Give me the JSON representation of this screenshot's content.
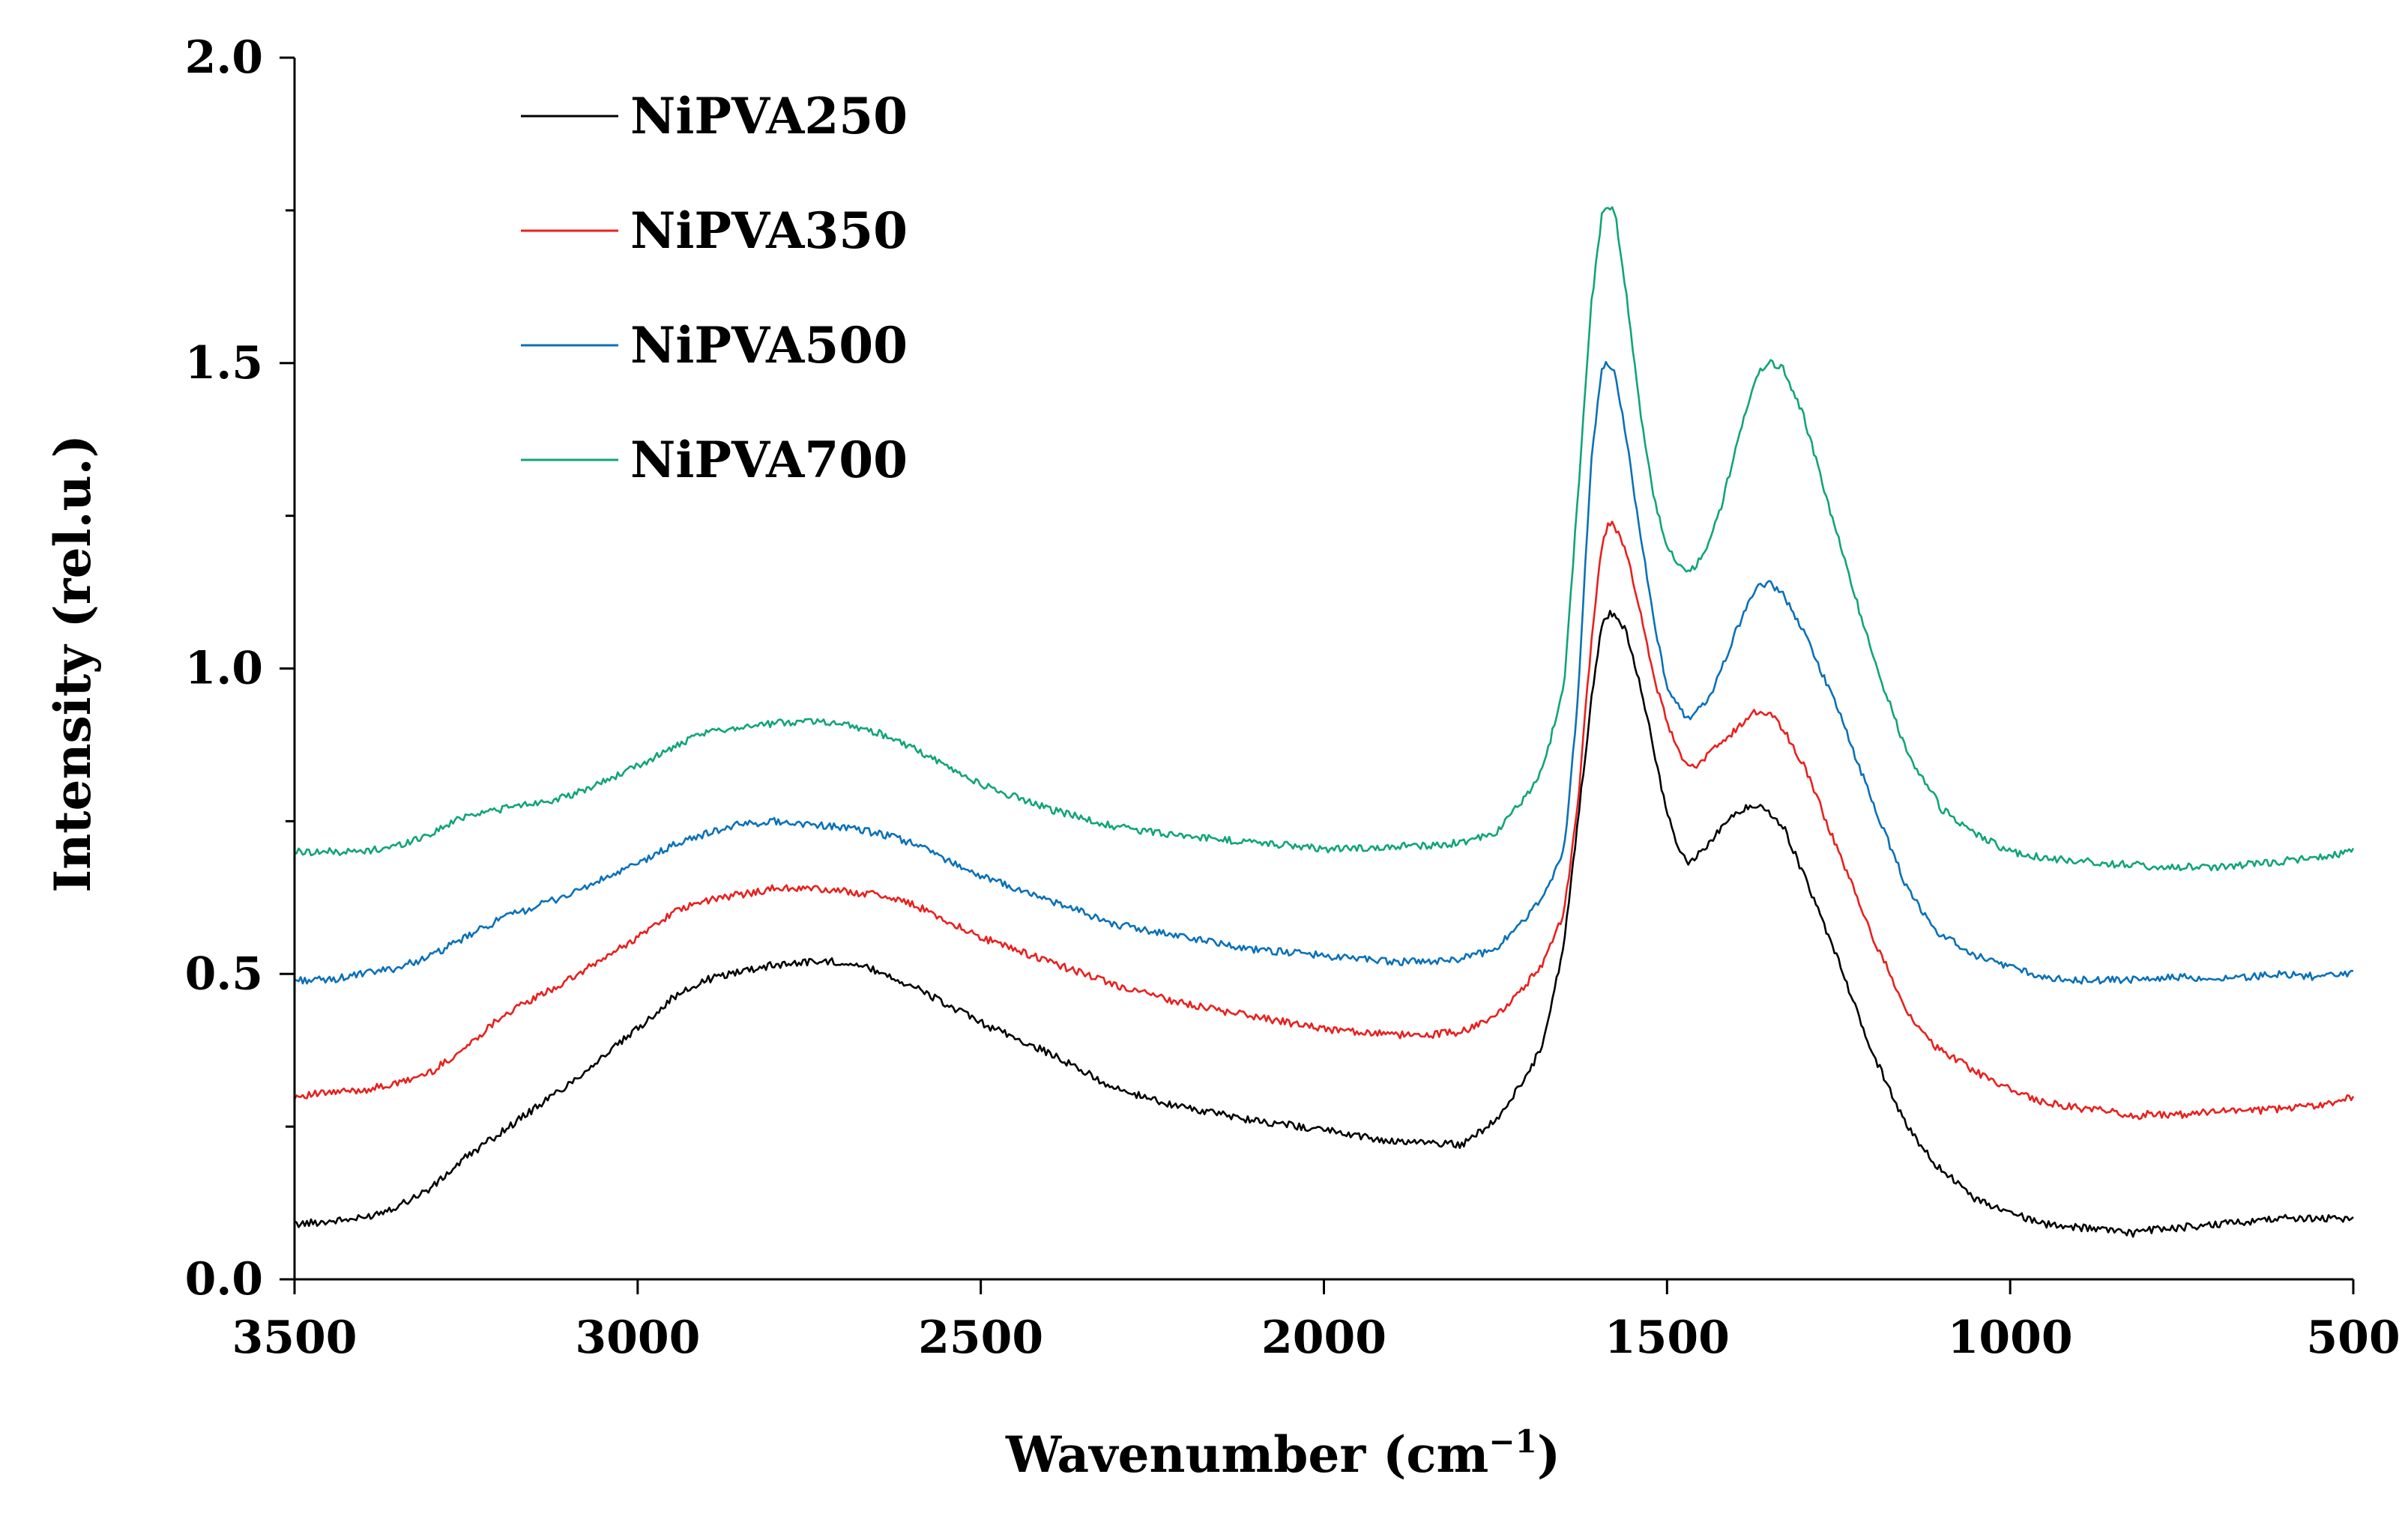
{
  "chart_data": {
    "type": "line",
    "title": "",
    "xlabel": "Wavenumber (cm",
    "xlabel_sup": "−1",
    "xlabel_close": ")",
    "ylabel": "Intensity (rel.u.)",
    "xlim": [
      3500,
      500
    ],
    "ylim": [
      0,
      2.0
    ],
    "xticks": [
      3500,
      3000,
      2500,
      2000,
      1500,
      1000,
      500
    ],
    "xtick_labels": [
      "3500",
      "3000",
      "2500",
      "2000",
      "1500",
      "1000",
      "500"
    ],
    "yticks": [
      0,
      0.5,
      1.0,
      1.5,
      2.0
    ],
    "ytick_labels": [
      "0.0",
      "0.5",
      "1.0",
      "1.5",
      "2.0"
    ],
    "grid": false,
    "legend_position": "top-left",
    "series": [
      {
        "name": "NiPVA250",
        "color": "#000000",
        "x": [
          3500,
          3450,
          3400,
          3350,
          3300,
          3250,
          3200,
          3100,
          3000,
          2950,
          2900,
          2850,
          2800,
          2750,
          2700,
          2650,
          2600,
          2500,
          2400,
          2300,
          2200,
          2100,
          2000,
          1950,
          1900,
          1850,
          1800,
          1750,
          1700,
          1680,
          1650,
          1630,
          1610,
          1595,
          1585,
          1575,
          1560,
          1540,
          1520,
          1500,
          1480,
          1470,
          1460,
          1440,
          1420,
          1400,
          1380,
          1370,
          1350,
          1330,
          1300,
          1250,
          1200,
          1150,
          1110,
          1100,
          1050,
          1000,
          950,
          900,
          850,
          820,
          800,
          750,
          700,
          650,
          600,
          550,
          500
        ],
        "y": [
          0.09,
          0.095,
          0.1,
          0.12,
          0.15,
          0.2,
          0.24,
          0.32,
          0.41,
          0.46,
          0.49,
          0.505,
          0.515,
          0.52,
          0.52,
          0.505,
          0.48,
          0.42,
          0.37,
          0.31,
          0.28,
          0.26,
          0.245,
          0.235,
          0.225,
          0.225,
          0.22,
          0.26,
          0.34,
          0.39,
          0.55,
          0.75,
          0.95,
          1.07,
          1.09,
          1.09,
          1.06,
          0.98,
          0.87,
          0.76,
          0.7,
          0.68,
          0.69,
          0.71,
          0.74,
          0.76,
          0.775,
          0.775,
          0.765,
          0.74,
          0.66,
          0.52,
          0.37,
          0.25,
          0.19,
          0.18,
          0.13,
          0.11,
          0.09,
          0.085,
          0.08,
          0.075,
          0.08,
          0.085,
          0.09,
          0.095,
          0.1,
          0.1,
          0.1
        ]
      },
      {
        "name": "NiPVA350",
        "color": "#e8201e",
        "x": [
          3500,
          3450,
          3400,
          3350,
          3300,
          3250,
          3200,
          3100,
          3000,
          2950,
          2900,
          2850,
          2800,
          2750,
          2700,
          2650,
          2600,
          2500,
          2400,
          2300,
          2200,
          2100,
          2000,
          1950,
          1900,
          1850,
          1800,
          1750,
          1700,
          1680,
          1650,
          1630,
          1610,
          1595,
          1585,
          1575,
          1560,
          1540,
          1520,
          1500,
          1480,
          1470,
          1460,
          1440,
          1420,
          1400,
          1380,
          1370,
          1350,
          1330,
          1300,
          1250,
          1200,
          1150,
          1110,
          1100,
          1050,
          1000,
          950,
          900,
          850,
          820,
          800,
          750,
          700,
          650,
          600,
          550,
          500
        ],
        "y": [
          0.3,
          0.305,
          0.31,
          0.32,
          0.34,
          0.38,
          0.43,
          0.49,
          0.56,
          0.6,
          0.62,
          0.63,
          0.64,
          0.64,
          0.635,
          0.63,
          0.615,
          0.56,
          0.52,
          0.48,
          0.45,
          0.43,
          0.41,
          0.405,
          0.4,
          0.4,
          0.405,
          0.43,
          0.49,
          0.52,
          0.6,
          0.78,
          1.05,
          1.2,
          1.24,
          1.23,
          1.19,
          1.1,
          0.99,
          0.91,
          0.86,
          0.84,
          0.84,
          0.86,
          0.88,
          0.9,
          0.92,
          0.93,
          0.925,
          0.9,
          0.84,
          0.7,
          0.56,
          0.44,
          0.38,
          0.375,
          0.34,
          0.31,
          0.29,
          0.28,
          0.275,
          0.265,
          0.27,
          0.27,
          0.275,
          0.275,
          0.28,
          0.285,
          0.3
        ]
      },
      {
        "name": "NiPVA500",
        "color": "#0a71b8",
        "x": [
          3500,
          3450,
          3400,
          3350,
          3300,
          3250,
          3200,
          3100,
          3000,
          2950,
          2900,
          2850,
          2800,
          2750,
          2700,
          2650,
          2600,
          2500,
          2400,
          2300,
          2200,
          2100,
          2000,
          1950,
          1900,
          1850,
          1800,
          1750,
          1700,
          1680,
          1650,
          1630,
          1610,
          1595,
          1585,
          1575,
          1560,
          1540,
          1520,
          1500,
          1480,
          1470,
          1460,
          1440,
          1420,
          1400,
          1380,
          1370,
          1350,
          1330,
          1300,
          1250,
          1200,
          1150,
          1110,
          1100,
          1050,
          1000,
          950,
          900,
          850,
          820,
          800,
          750,
          700,
          650,
          600,
          550,
          500
        ],
        "y": [
          0.49,
          0.49,
          0.5,
          0.51,
          0.53,
          0.56,
          0.59,
          0.63,
          0.68,
          0.71,
          0.73,
          0.745,
          0.75,
          0.745,
          0.74,
          0.73,
          0.715,
          0.66,
          0.62,
          0.58,
          0.56,
          0.54,
          0.53,
          0.525,
          0.52,
          0.52,
          0.525,
          0.54,
          0.6,
          0.63,
          0.7,
          0.95,
          1.35,
          1.49,
          1.5,
          1.48,
          1.38,
          1.23,
          1.08,
          0.97,
          0.93,
          0.92,
          0.925,
          0.95,
          1.0,
          1.06,
          1.11,
          1.13,
          1.14,
          1.12,
          1.06,
          0.93,
          0.78,
          0.64,
          0.57,
          0.565,
          0.53,
          0.51,
          0.495,
          0.49,
          0.49,
          0.49,
          0.49,
          0.495,
          0.49,
          0.495,
          0.5,
          0.495,
          0.5
        ]
      },
      {
        "name": "NiPVA700",
        "color": "#11a479",
        "x": [
          3500,
          3450,
          3400,
          3350,
          3300,
          3250,
          3200,
          3100,
          3000,
          2950,
          2900,
          2850,
          2800,
          2750,
          2700,
          2650,
          2600,
          2500,
          2400,
          2300,
          2200,
          2100,
          2000,
          1950,
          1900,
          1850,
          1800,
          1750,
          1700,
          1680,
          1650,
          1630,
          1610,
          1595,
          1585,
          1575,
          1560,
          1540,
          1520,
          1500,
          1480,
          1470,
          1460,
          1440,
          1420,
          1400,
          1380,
          1370,
          1350,
          1330,
          1300,
          1250,
          1200,
          1150,
          1110,
          1100,
          1050,
          1000,
          950,
          900,
          850,
          820,
          800,
          750,
          700,
          650,
          600,
          550,
          500
        ],
        "y": [
          0.7,
          0.7,
          0.7,
          0.71,
          0.73,
          0.76,
          0.77,
          0.79,
          0.84,
          0.87,
          0.895,
          0.905,
          0.91,
          0.915,
          0.91,
          0.895,
          0.87,
          0.81,
          0.77,
          0.74,
          0.725,
          0.715,
          0.705,
          0.705,
          0.71,
          0.71,
          0.715,
          0.73,
          0.8,
          0.84,
          0.97,
          1.28,
          1.6,
          1.74,
          1.76,
          1.74,
          1.62,
          1.43,
          1.28,
          1.2,
          1.165,
          1.16,
          1.165,
          1.2,
          1.27,
          1.36,
          1.44,
          1.48,
          1.5,
          1.49,
          1.41,
          1.21,
          1.02,
          0.86,
          0.79,
          0.77,
          0.73,
          0.7,
          0.69,
          0.685,
          0.68,
          0.68,
          0.675,
          0.675,
          0.675,
          0.68,
          0.685,
          0.69,
          0.7
        ]
      }
    ]
  }
}
